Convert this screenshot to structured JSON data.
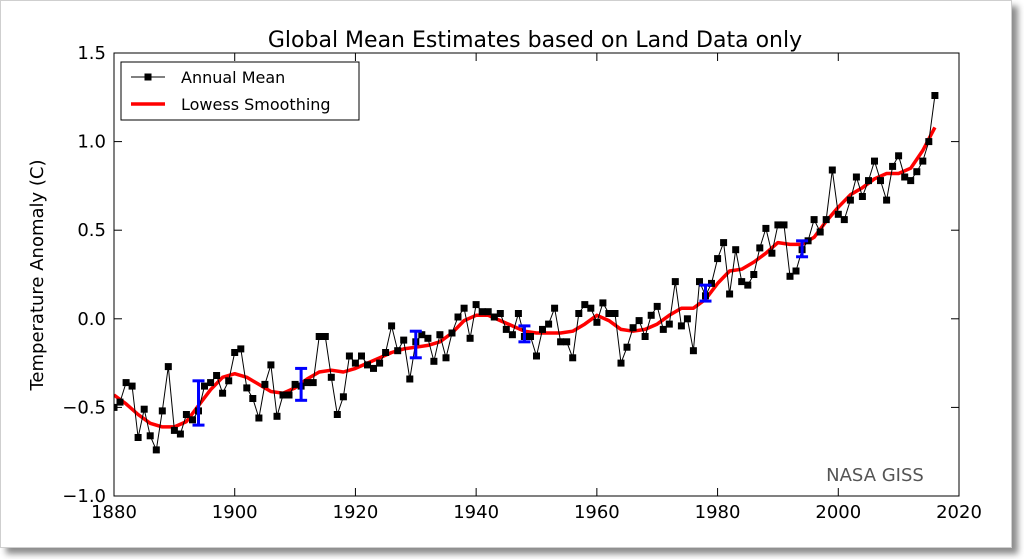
{
  "chart_data": {
    "type": "line",
    "title": "Global Mean Estimates based on Land Data only",
    "xlabel": "",
    "ylabel": "Temperature Anomaly (C)",
    "xlim": [
      1880,
      2020
    ],
    "ylim": [
      -1.0,
      1.5
    ],
    "xticks": [
      "1880",
      "1900",
      "1920",
      "1940",
      "1960",
      "1980",
      "2000",
      "2020"
    ],
    "yticks": [
      "−1.0",
      "−0.5",
      "0.0",
      "0.5",
      "1.0",
      "1.5"
    ],
    "grid": false,
    "legend_position": "top-left",
    "annotation": "NASA GISS",
    "colors": {
      "annual": "#000000",
      "smooth": "#ff0000",
      "error": "#0000ff"
    },
    "series": [
      {
        "name": "Annual Mean",
        "x": [
          1880,
          1881,
          1882,
          1883,
          1884,
          1885,
          1886,
          1887,
          1888,
          1889,
          1890,
          1891,
          1892,
          1893,
          1894,
          1895,
          1896,
          1897,
          1898,
          1899,
          1900,
          1901,
          1902,
          1903,
          1904,
          1905,
          1906,
          1907,
          1908,
          1909,
          1910,
          1911,
          1912,
          1913,
          1914,
          1915,
          1916,
          1917,
          1918,
          1919,
          1920,
          1921,
          1922,
          1923,
          1924,
          1925,
          1926,
          1927,
          1928,
          1929,
          1930,
          1931,
          1932,
          1933,
          1934,
          1935,
          1936,
          1937,
          1938,
          1939,
          1940,
          1941,
          1942,
          1943,
          1944,
          1945,
          1946,
          1947,
          1948,
          1949,
          1950,
          1951,
          1952,
          1953,
          1954,
          1955,
          1956,
          1957,
          1958,
          1959,
          1960,
          1961,
          1962,
          1963,
          1964,
          1965,
          1966,
          1967,
          1968,
          1969,
          1970,
          1971,
          1972,
          1973,
          1974,
          1975,
          1976,
          1977,
          1978,
          1979,
          1980,
          1981,
          1982,
          1983,
          1984,
          1985,
          1986,
          1987,
          1988,
          1989,
          1990,
          1991,
          1992,
          1993,
          1994,
          1995,
          1996,
          1997,
          1998,
          1999,
          2000,
          2001,
          2002,
          2003,
          2004,
          2005,
          2006,
          2007,
          2008,
          2009,
          2010,
          2011,
          2012,
          2013,
          2014,
          2015,
          2016
        ],
        "values": [
          -0.5,
          -0.47,
          -0.36,
          -0.38,
          -0.67,
          -0.51,
          -0.66,
          -0.74,
          -0.52,
          -0.27,
          -0.63,
          -0.65,
          -0.54,
          -0.57,
          -0.52,
          -0.38,
          -0.36,
          -0.32,
          -0.42,
          -0.35,
          -0.19,
          -0.17,
          -0.39,
          -0.45,
          -0.56,
          -0.37,
          -0.26,
          -0.55,
          -0.43,
          -0.43,
          -0.37,
          -0.38,
          -0.36,
          -0.36,
          -0.1,
          -0.1,
          -0.33,
          -0.54,
          -0.44,
          -0.21,
          -0.25,
          -0.21,
          -0.26,
          -0.28,
          -0.25,
          -0.19,
          -0.04,
          -0.18,
          -0.12,
          -0.34,
          -0.13,
          -0.09,
          -0.11,
          -0.24,
          -0.09,
          -0.22,
          -0.08,
          0.01,
          0.06,
          -0.11,
          0.08,
          0.04,
          0.04,
          0.01,
          0.03,
          -0.06,
          -0.09,
          0.03,
          -0.1,
          -0.1,
          -0.21,
          -0.06,
          -0.03,
          0.06,
          -0.13,
          -0.13,
          -0.22,
          0.03,
          0.08,
          0.06,
          -0.02,
          0.09,
          0.03,
          0.03,
          -0.25,
          -0.16,
          -0.05,
          -0.01,
          -0.1,
          0.02,
          0.07,
          -0.06,
          -0.03,
          0.21,
          -0.04,
          0.0,
          -0.18,
          0.21,
          0.13,
          0.2,
          0.34,
          0.43,
          0.14,
          0.39,
          0.21,
          0.19,
          0.25,
          0.4,
          0.51,
          0.37,
          0.53,
          0.53,
          0.24,
          0.27,
          0.39,
          0.44,
          0.56,
          0.49,
          0.56,
          0.84,
          0.59,
          0.56,
          0.67,
          0.8,
          0.69,
          0.78,
          0.89,
          0.78,
          0.67,
          0.86,
          0.92,
          0.8,
          0.78,
          0.83,
          0.89,
          1.0,
          1.26
        ]
      },
      {
        "name": "Lowess Smoothing",
        "x": [
          1880,
          1882,
          1884,
          1886,
          1888,
          1890,
          1892,
          1894,
          1896,
          1898,
          1900,
          1902,
          1904,
          1906,
          1908,
          1910,
          1912,
          1914,
          1916,
          1918,
          1920,
          1922,
          1924,
          1926,
          1928,
          1930,
          1932,
          1934,
          1936,
          1938,
          1940,
          1942,
          1944,
          1946,
          1948,
          1950,
          1952,
          1954,
          1956,
          1958,
          1960,
          1962,
          1964,
          1966,
          1968,
          1970,
          1972,
          1974,
          1976,
          1978,
          1980,
          1982,
          1984,
          1986,
          1988,
          1990,
          1992,
          1994,
          1996,
          1998,
          2000,
          2002,
          2004,
          2006,
          2008,
          2010,
          2012,
          2014,
          2016
        ],
        "values": [
          -0.43,
          -0.48,
          -0.54,
          -0.59,
          -0.61,
          -0.61,
          -0.58,
          -0.49,
          -0.4,
          -0.33,
          -0.31,
          -0.33,
          -0.37,
          -0.41,
          -0.42,
          -0.39,
          -0.34,
          -0.3,
          -0.29,
          -0.3,
          -0.28,
          -0.25,
          -0.22,
          -0.19,
          -0.17,
          -0.16,
          -0.15,
          -0.13,
          -0.08,
          -0.01,
          0.02,
          0.02,
          -0.01,
          -0.04,
          -0.07,
          -0.08,
          -0.08,
          -0.08,
          -0.07,
          -0.03,
          0.02,
          -0.01,
          -0.06,
          -0.07,
          -0.06,
          -0.03,
          0.02,
          0.06,
          0.06,
          0.11,
          0.2,
          0.27,
          0.28,
          0.32,
          0.37,
          0.43,
          0.42,
          0.42,
          0.46,
          0.55,
          0.63,
          0.7,
          0.74,
          0.79,
          0.82,
          0.82,
          0.85,
          0.95,
          1.08
        ]
      }
    ],
    "error_bars": [
      {
        "x": 1894,
        "low": -0.6,
        "high": -0.35
      },
      {
        "x": 1911,
        "low": -0.46,
        "high": -0.28
      },
      {
        "x": 1930,
        "low": -0.22,
        "high": -0.07
      },
      {
        "x": 1948,
        "low": -0.13,
        "high": -0.04
      },
      {
        "x": 1978,
        "low": 0.1,
        "high": 0.19
      },
      {
        "x": 1994,
        "low": 0.35,
        "high": 0.44
      }
    ]
  }
}
